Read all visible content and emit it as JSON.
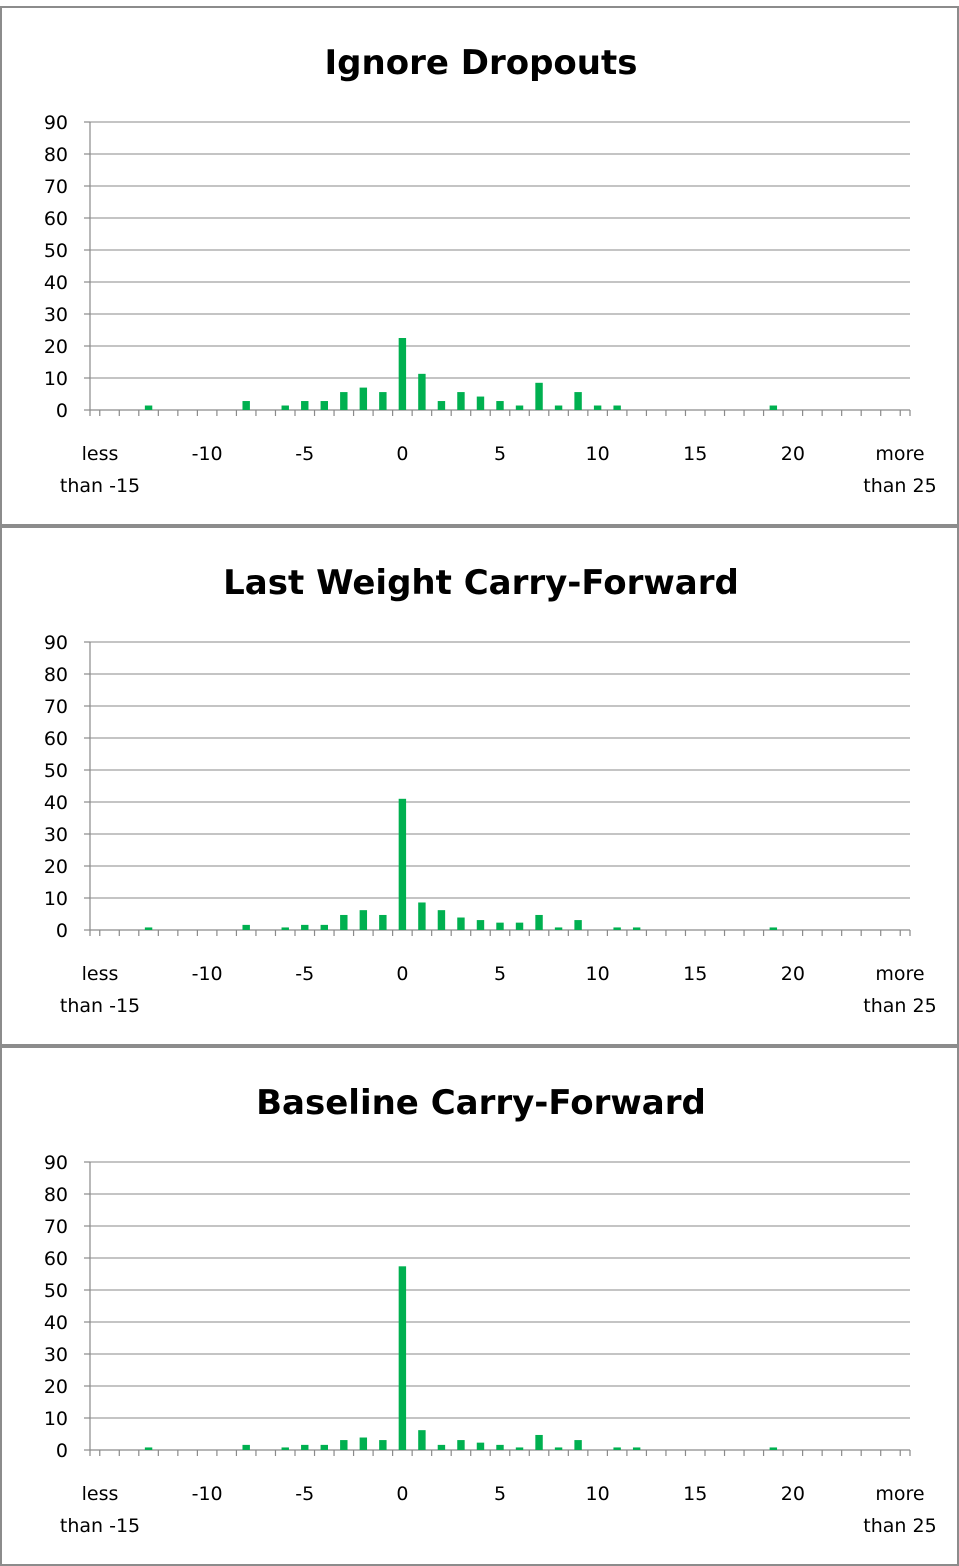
{
  "chart_data": [
    {
      "type": "bar",
      "title": "Ignore Dropouts",
      "ylim": [
        0,
        90
      ],
      "yticks": [
        0,
        10,
        20,
        30,
        40,
        50,
        60,
        70,
        80,
        90
      ],
      "x": [
        -16,
        -15,
        -14,
        -13,
        -12,
        -11,
        -10,
        -9,
        -8,
        -7,
        -6,
        -5,
        -4,
        -3,
        -2,
        -1,
        0,
        1,
        2,
        3,
        4,
        5,
        6,
        7,
        8,
        9,
        10,
        11,
        12,
        13,
        14,
        15,
        16,
        17,
        18,
        19,
        20,
        21,
        22,
        23,
        24,
        25,
        26
      ],
      "values": [
        0,
        0,
        0,
        1.4,
        0,
        0,
        0,
        0,
        2.8,
        0,
        1.4,
        2.8,
        2.8,
        5.6,
        7,
        5.6,
        22.5,
        11.3,
        2.8,
        5.6,
        4.2,
        2.8,
        1.4,
        8.5,
        1.4,
        5.6,
        1.4,
        1.4,
        0,
        0,
        0,
        0,
        0,
        0,
        0,
        1.4,
        0,
        0,
        0,
        0,
        0,
        0,
        0
      ],
      "xtick_labels": [
        {
          "x": -16,
          "lines": [
            "less",
            "than -15"
          ]
        },
        {
          "x": -10,
          "lines": [
            "-10"
          ]
        },
        {
          "x": -5,
          "lines": [
            "-5"
          ]
        },
        {
          "x": 0,
          "lines": [
            "0"
          ]
        },
        {
          "x": 5,
          "lines": [
            "5"
          ]
        },
        {
          "x": 10,
          "lines": [
            "10"
          ]
        },
        {
          "x": 15,
          "lines": [
            "15"
          ]
        },
        {
          "x": 20,
          "lines": [
            "20"
          ]
        },
        {
          "x": 26,
          "lines": [
            "more",
            "than 25"
          ]
        }
      ],
      "bar_color": "#00b050",
      "grid": true
    },
    {
      "type": "bar",
      "title": "Last Weight Carry-Forward",
      "ylim": [
        0,
        90
      ],
      "yticks": [
        0,
        10,
        20,
        30,
        40,
        50,
        60,
        70,
        80,
        90
      ],
      "x": [
        -16,
        -15,
        -14,
        -13,
        -12,
        -11,
        -10,
        -9,
        -8,
        -7,
        -6,
        -5,
        -4,
        -3,
        -2,
        -1,
        0,
        1,
        2,
        3,
        4,
        5,
        6,
        7,
        8,
        9,
        10,
        11,
        12,
        13,
        14,
        15,
        16,
        17,
        18,
        19,
        20,
        21,
        22,
        23,
        24,
        25,
        26
      ],
      "values": [
        0,
        0,
        0,
        0.8,
        0,
        0,
        0,
        0,
        1.6,
        0,
        0.8,
        1.6,
        1.6,
        4.7,
        6.2,
        4.7,
        41,
        8.6,
        6.2,
        3.9,
        3.1,
        2.3,
        2.3,
        4.7,
        0.8,
        3.1,
        0,
        0.8,
        0.8,
        0,
        0,
        0,
        0,
        0,
        0,
        0.8,
        0,
        0,
        0,
        0,
        0,
        0,
        0
      ],
      "xtick_labels": [
        {
          "x": -16,
          "lines": [
            "less",
            "than -15"
          ]
        },
        {
          "x": -10,
          "lines": [
            "-10"
          ]
        },
        {
          "x": -5,
          "lines": [
            "-5"
          ]
        },
        {
          "x": 0,
          "lines": [
            "0"
          ]
        },
        {
          "x": 5,
          "lines": [
            "5"
          ]
        },
        {
          "x": 10,
          "lines": [
            "10"
          ]
        },
        {
          "x": 15,
          "lines": [
            "15"
          ]
        },
        {
          "x": 20,
          "lines": [
            "20"
          ]
        },
        {
          "x": 26,
          "lines": [
            "more",
            "than 25"
          ]
        }
      ],
      "bar_color": "#00b050",
      "grid": true
    },
    {
      "type": "bar",
      "title": "Baseline Carry-Forward",
      "ylim": [
        0,
        90
      ],
      "yticks": [
        0,
        10,
        20,
        30,
        40,
        50,
        60,
        70,
        80,
        90
      ],
      "x": [
        -16,
        -15,
        -14,
        -13,
        -12,
        -11,
        -10,
        -9,
        -8,
        -7,
        -6,
        -5,
        -4,
        -3,
        -2,
        -1,
        0,
        1,
        2,
        3,
        4,
        5,
        6,
        7,
        8,
        9,
        10,
        11,
        12,
        13,
        14,
        15,
        16,
        17,
        18,
        19,
        20,
        21,
        22,
        23,
        24,
        25,
        26
      ],
      "values": [
        0,
        0,
        0,
        0.8,
        0,
        0,
        0,
        0,
        1.6,
        0,
        0.8,
        1.6,
        1.6,
        3.1,
        3.9,
        3.1,
        57.4,
        6.2,
        1.6,
        3.1,
        2.3,
        1.6,
        0.8,
        4.7,
        0.8,
        3.1,
        0,
        0.8,
        0.8,
        0,
        0,
        0,
        0,
        0,
        0,
        0.8,
        0,
        0,
        0,
        0,
        0,
        0,
        0
      ],
      "xtick_labels": [
        {
          "x": -16,
          "lines": [
            "less",
            "than -15"
          ]
        },
        {
          "x": -10,
          "lines": [
            "-10"
          ]
        },
        {
          "x": -5,
          "lines": [
            "-5"
          ]
        },
        {
          "x": 0,
          "lines": [
            "0"
          ]
        },
        {
          "x": 5,
          "lines": [
            "5"
          ]
        },
        {
          "x": 10,
          "lines": [
            "10"
          ]
        },
        {
          "x": 15,
          "lines": [
            "15"
          ]
        },
        {
          "x": 20,
          "lines": [
            "20"
          ]
        },
        {
          "x": 26,
          "lines": [
            "more",
            "than 25"
          ]
        }
      ],
      "bar_color": "#00b050",
      "grid": true
    }
  ]
}
